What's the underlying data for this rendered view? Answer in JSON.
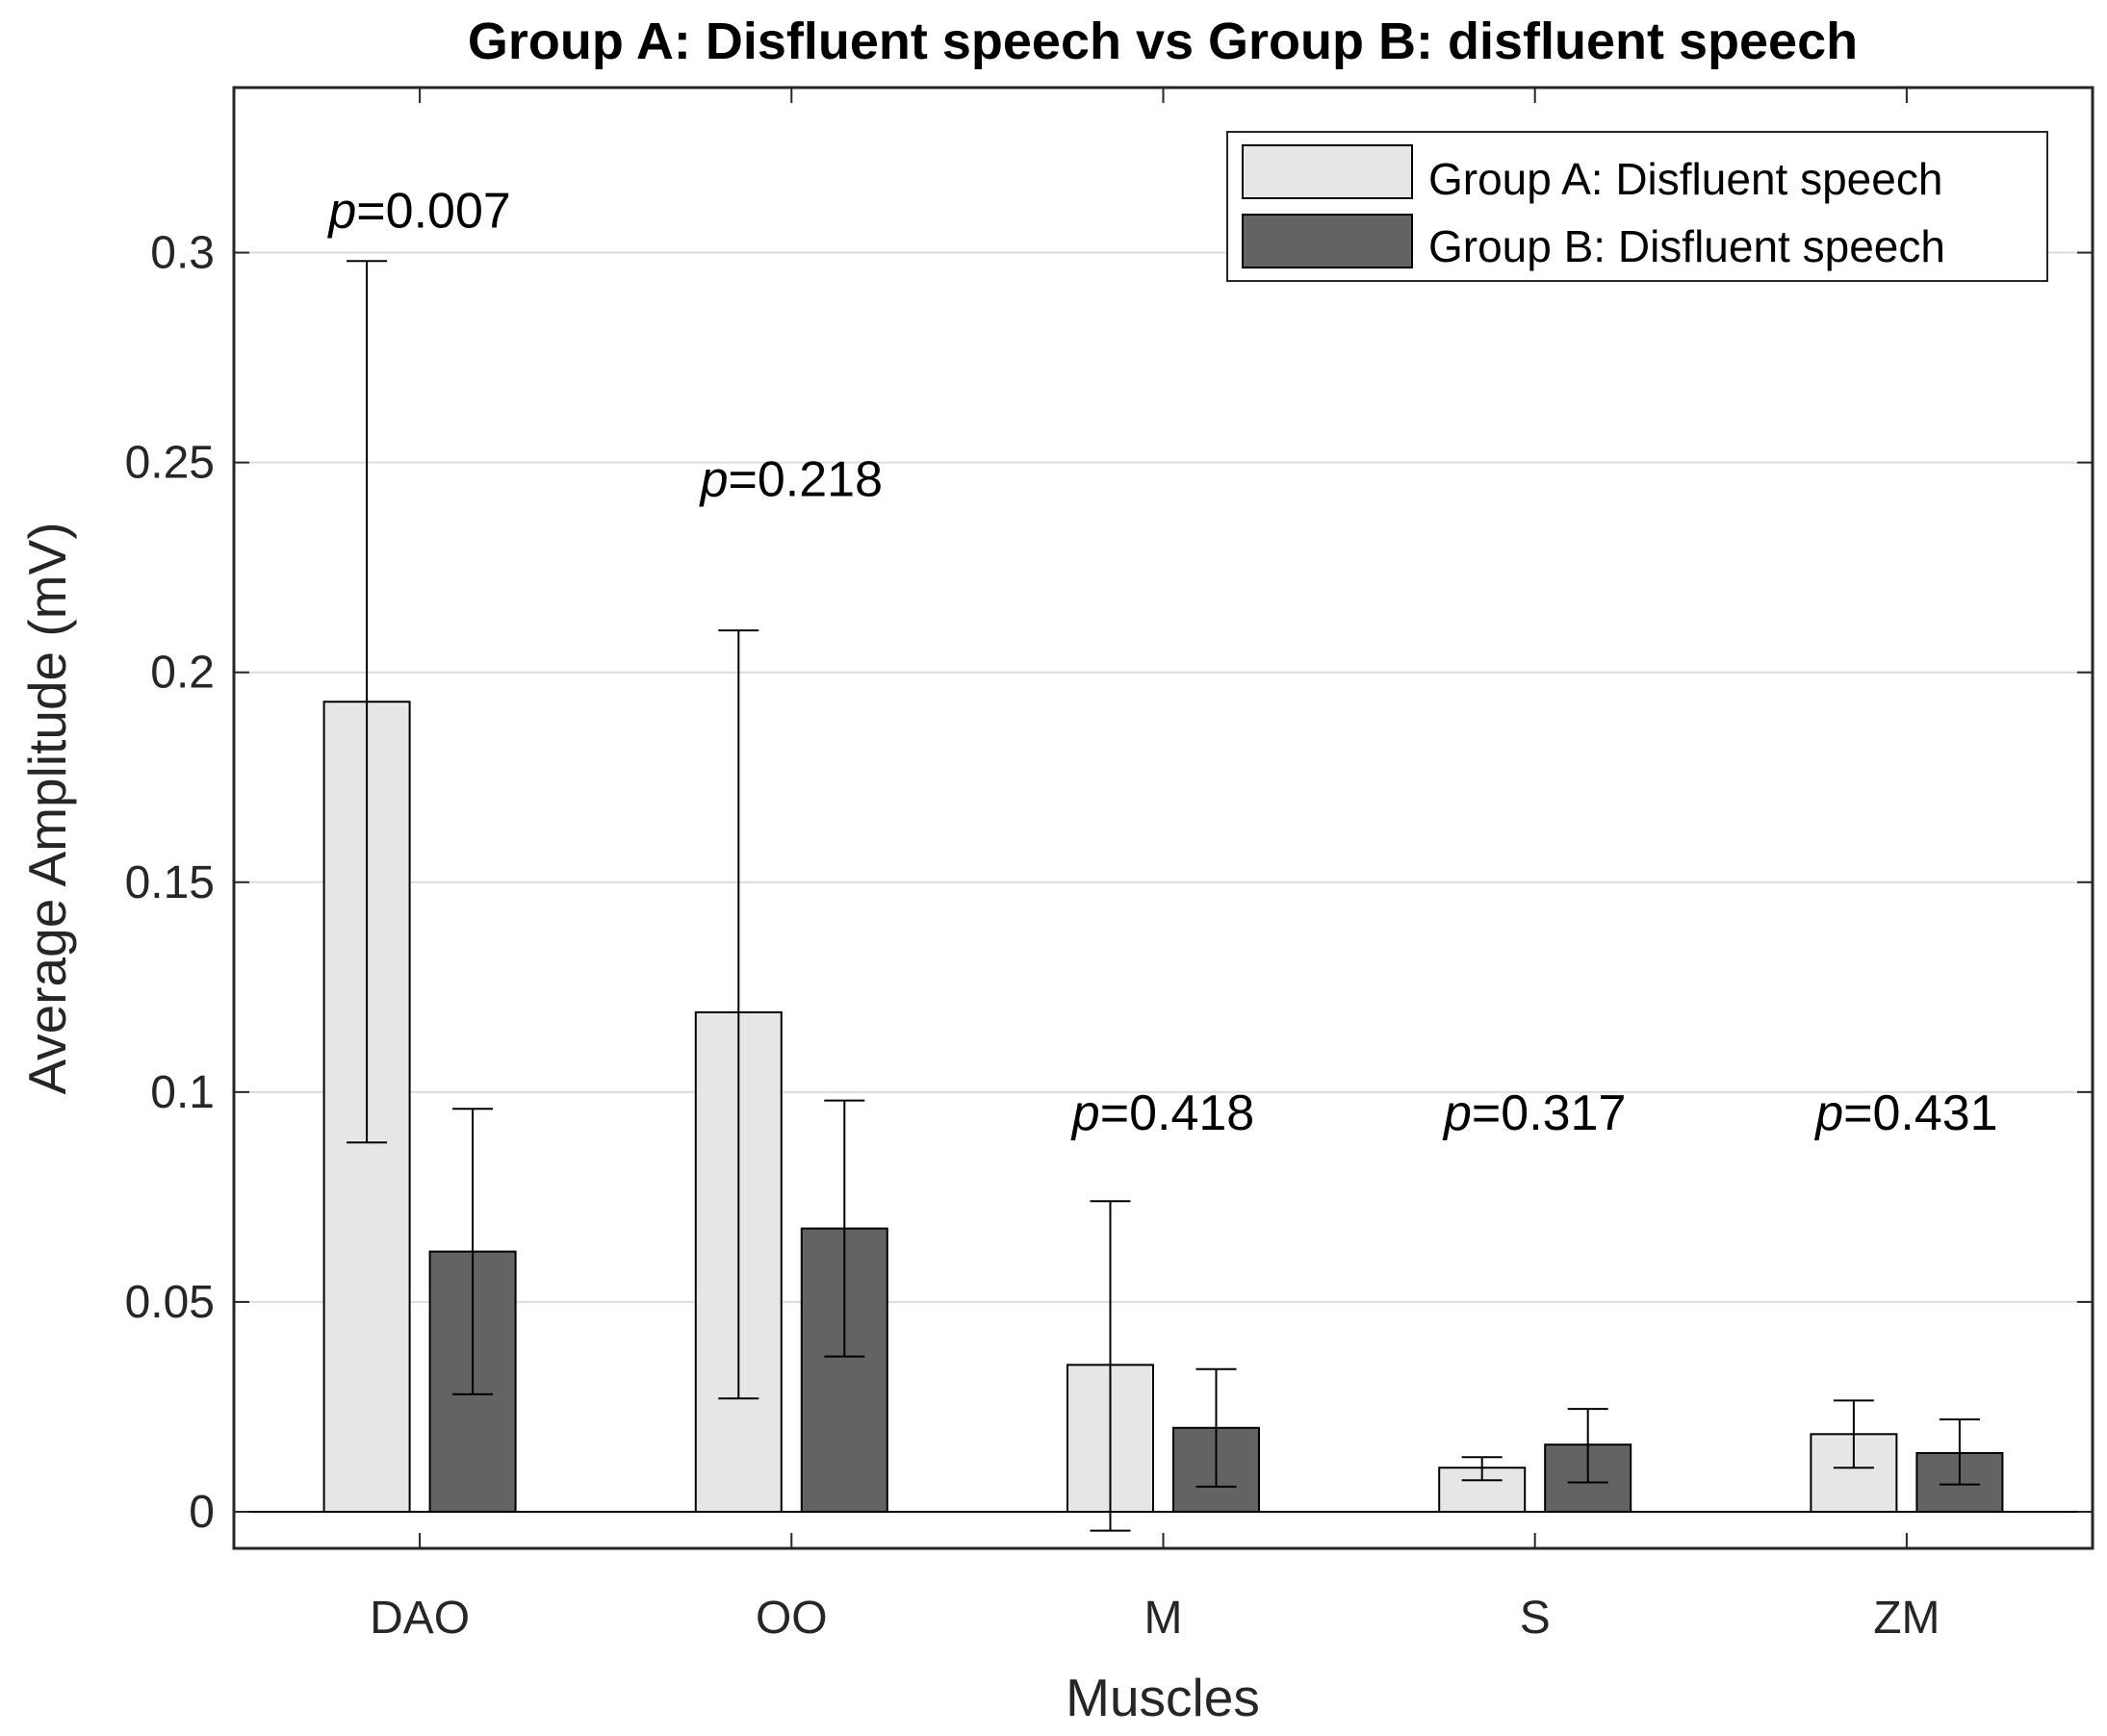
{
  "chart_data": {
    "type": "bar",
    "title": "Group A: Disfluent speech vs Group B: disfluent speech",
    "xlabel": "Muscles",
    "ylabel": "Average Amplitude (mV)",
    "categories": [
      "DAO",
      "OO",
      "M",
      "S",
      "ZM"
    ],
    "ylim": [
      -0.009,
      0.34
    ],
    "yticks": [
      0,
      0.05,
      0.1,
      0.15,
      0.2,
      0.25,
      0.3
    ],
    "ytick_labels": [
      "0",
      "0.05",
      "0.1",
      "0.15",
      "0.2",
      "0.25",
      "0.3"
    ],
    "grid": "horizontal",
    "legend_position": "top-right",
    "series": [
      {
        "name": "Group A: Disfluent speech",
        "color": "#e6e6e6",
        "values": [
          0.193,
          0.119,
          0.035,
          0.0105,
          0.0185
        ],
        "error_low": [
          0.088,
          0.027,
          -0.0045,
          0.0075,
          0.0105
        ],
        "error_high": [
          0.298,
          0.21,
          0.074,
          0.013,
          0.0265
        ]
      },
      {
        "name": "Group B: Disfluent speech",
        "color": "#636363",
        "values": [
          0.062,
          0.0675,
          0.02,
          0.016,
          0.014
        ],
        "error_low": [
          0.028,
          0.037,
          0.006,
          0.007,
          0.0065
        ],
        "error_high": [
          0.096,
          0.098,
          0.034,
          0.0245,
          0.022
        ]
      }
    ],
    "annotations": [
      {
        "prefix": "p",
        "text": "=0.007",
        "category": "DAO",
        "y": 0.306
      },
      {
        "prefix": "p",
        "text": "=0.218",
        "category": "OO",
        "y": 0.242
      },
      {
        "prefix": "p",
        "text": "=0.418",
        "category": "M",
        "y": 0.091
      },
      {
        "prefix": "p",
        "text": "=0.317",
        "category": "S",
        "y": 0.091
      },
      {
        "prefix": "p",
        "text": "=0.431",
        "category": "ZM",
        "y": 0.091
      }
    ]
  }
}
